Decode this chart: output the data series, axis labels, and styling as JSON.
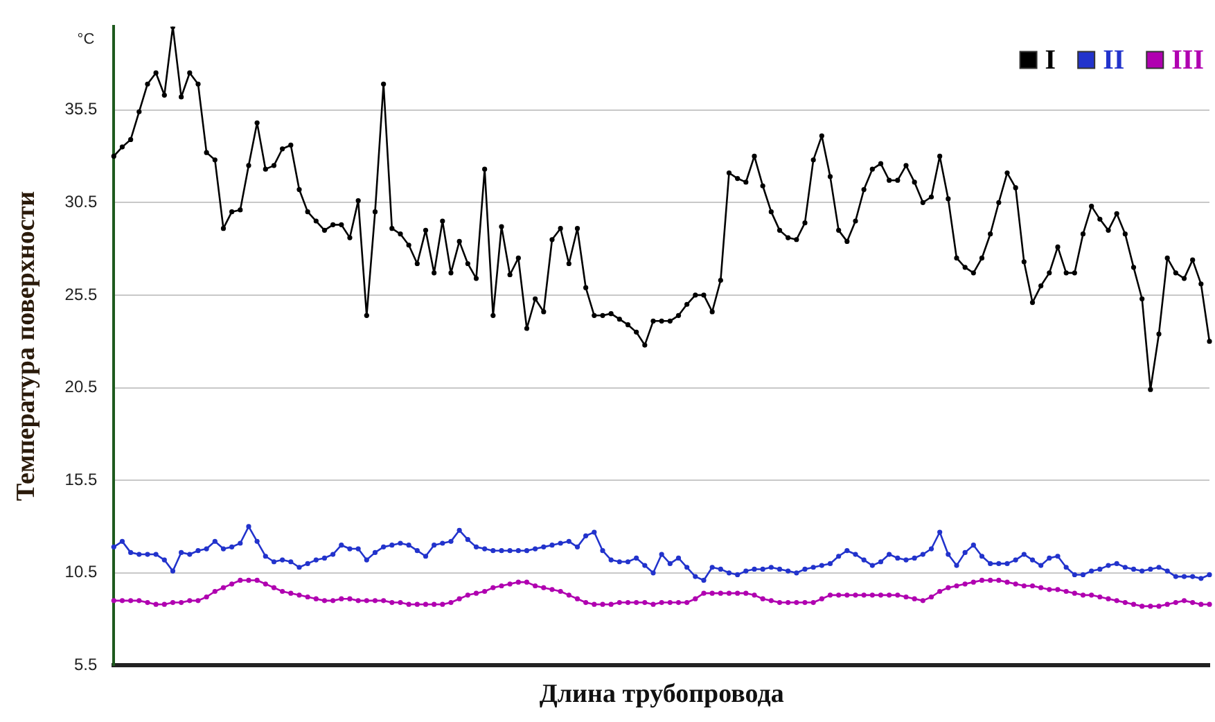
{
  "chart_data": {
    "type": "line",
    "xlabel": "Длина трубопровода",
    "ylabel": "Температура поверхности",
    "annotations": [
      "°C"
    ],
    "categories": [
      null,
      null,
      null,
      null,
      null,
      null,
      null,
      null,
      null,
      null,
      null,
      null,
      null,
      null,
      null,
      null,
      null,
      null,
      null,
      null,
      null,
      null,
      null,
      null,
      null,
      null,
      null,
      null,
      null,
      null,
      null,
      null,
      null,
      null,
      null,
      null,
      null,
      null,
      null,
      null,
      null,
      null,
      null,
      null,
      null,
      null,
      null,
      null,
      null,
      null,
      null,
      null,
      null,
      null,
      null,
      null,
      null,
      null,
      null,
      null,
      null,
      null,
      null,
      null,
      null,
      null,
      null,
      null,
      null,
      null,
      null,
      null,
      null,
      null,
      null,
      null,
      null,
      null,
      null,
      null,
      null,
      null,
      null,
      null,
      null,
      null,
      null,
      null,
      null,
      null,
      null,
      null,
      null,
      null,
      null,
      null,
      null,
      null,
      null,
      null,
      null,
      null,
      null,
      null,
      null,
      null,
      null,
      null,
      null,
      null,
      null,
      null,
      null,
      null,
      null,
      null,
      null,
      null,
      null,
      null,
      null,
      null,
      null,
      null,
      null,
      null,
      null,
      null,
      null,
      null,
      null
    ],
    "series": [
      {
        "name": "I",
        "color": "#000000",
        "values": [
          33.0,
          33.5,
          33.9,
          35.4,
          36.9,
          37.5,
          36.3,
          40.0,
          36.2,
          37.5,
          36.9,
          33.2,
          32.8,
          29.1,
          30.0,
          30.1,
          32.5,
          34.8,
          32.3,
          32.5,
          33.4,
          33.6,
          31.2,
          30.0,
          29.5,
          29.0,
          29.3,
          29.3,
          28.6,
          30.6,
          24.4,
          30.0,
          36.9,
          29.1,
          28.8,
          28.2,
          27.2,
          29.0,
          26.7,
          29.5,
          26.7,
          28.4,
          27.2,
          26.4,
          32.3,
          24.4,
          29.2,
          26.6,
          27.5,
          23.7,
          25.3,
          24.6,
          28.5,
          29.1,
          27.2,
          29.1,
          25.9,
          24.4,
          24.4,
          24.5,
          24.2,
          23.9,
          23.5,
          22.8,
          24.1,
          24.1,
          24.1,
          24.4,
          25.0,
          25.5,
          25.5,
          24.6,
          26.3,
          32.1,
          31.8,
          31.6,
          33.0,
          31.4,
          30.0,
          29.0,
          28.6,
          28.5,
          29.4,
          32.8,
          34.1,
          31.9,
          29.0,
          28.4,
          29.5,
          31.2,
          32.3,
          32.6,
          31.7,
          31.7,
          32.5,
          31.6,
          30.5,
          30.8,
          33.0,
          30.7,
          27.5,
          27.0,
          26.7,
          27.5,
          28.8,
          30.5,
          32.1,
          31.3,
          27.3,
          25.1,
          26.0,
          26.7,
          28.1,
          26.7,
          26.7,
          28.8,
          30.3,
          29.6,
          29.0,
          29.9,
          28.8,
          27.0,
          25.3,
          20.4,
          23.4,
          27.5,
          26.7,
          26.4,
          27.4,
          26.1,
          23.0
        ]
      },
      {
        "name": "II",
        "color": "#2233cc",
        "values": [
          11.9,
          12.2,
          11.6,
          11.5,
          11.5,
          11.5,
          11.2,
          10.6,
          11.6,
          11.5,
          11.7,
          11.8,
          12.2,
          11.8,
          11.9,
          12.1,
          13.0,
          12.2,
          11.4,
          11.1,
          11.2,
          11.1,
          10.8,
          11.0,
          11.2,
          11.3,
          11.5,
          12.0,
          11.8,
          11.8,
          11.2,
          11.6,
          11.9,
          12.0,
          12.1,
          12.0,
          11.7,
          11.4,
          12.0,
          12.1,
          12.2,
          12.8,
          12.3,
          11.9,
          11.8,
          11.7,
          11.7,
          11.7,
          11.7,
          11.7,
          11.8,
          11.9,
          12.0,
          12.1,
          12.2,
          11.9,
          12.5,
          12.7,
          11.7,
          11.2,
          11.1,
          11.1,
          11.3,
          10.9,
          10.5,
          11.5,
          11.0,
          11.3,
          10.8,
          10.3,
          10.1,
          10.8,
          10.7,
          10.5,
          10.4,
          10.6,
          10.7,
          10.7,
          10.8,
          10.7,
          10.6,
          10.5,
          10.7,
          10.8,
          10.9,
          11.0,
          11.4,
          11.7,
          11.5,
          11.2,
          10.9,
          11.1,
          11.5,
          11.3,
          11.2,
          11.3,
          11.5,
          11.8,
          12.7,
          11.5,
          10.9,
          11.6,
          12.0,
          11.4,
          11.0,
          11.0,
          11.0,
          11.2,
          11.5,
          11.2,
          10.9,
          11.3,
          11.4,
          10.8,
          10.4,
          10.4,
          10.6,
          10.7,
          10.9,
          11.0,
          10.8,
          10.7,
          10.6,
          10.7,
          10.8,
          10.6,
          10.3,
          10.3,
          10.3,
          10.2,
          10.4
        ]
      },
      {
        "name": "III",
        "color": "#b000b0",
        "values": [
          9.0,
          9.0,
          9.0,
          9.0,
          8.9,
          8.8,
          8.8,
          8.9,
          8.9,
          9.0,
          9.0,
          9.2,
          9.5,
          9.7,
          9.9,
          10.1,
          10.1,
          10.1,
          9.9,
          9.7,
          9.5,
          9.4,
          9.3,
          9.2,
          9.1,
          9.0,
          9.0,
          9.1,
          9.1,
          9.0,
          9.0,
          9.0,
          9.0,
          8.9,
          8.9,
          8.8,
          8.8,
          8.8,
          8.8,
          8.8,
          8.9,
          9.1,
          9.3,
          9.4,
          9.5,
          9.7,
          9.8,
          9.9,
          10.0,
          10.0,
          9.8,
          9.7,
          9.6,
          9.5,
          9.3,
          9.1,
          8.9,
          8.8,
          8.8,
          8.8,
          8.9,
          8.9,
          8.9,
          8.9,
          8.8,
          8.9,
          8.9,
          8.9,
          8.9,
          9.1,
          9.4,
          9.4,
          9.4,
          9.4,
          9.4,
          9.4,
          9.3,
          9.1,
          9.0,
          8.9,
          8.9,
          8.9,
          8.9,
          8.9,
          9.1,
          9.3,
          9.3,
          9.3,
          9.3,
          9.3,
          9.3,
          9.3,
          9.3,
          9.3,
          9.2,
          9.1,
          9.0,
          9.2,
          9.5,
          9.7,
          9.8,
          9.9,
          10.0,
          10.1,
          10.1,
          10.1,
          10.0,
          9.9,
          9.8,
          9.8,
          9.7,
          9.6,
          9.6,
          9.5,
          9.4,
          9.3,
          9.3,
          9.2,
          9.1,
          9.0,
          8.9,
          8.8,
          8.7,
          8.7,
          8.7,
          8.8,
          8.9,
          9.0,
          8.9,
          8.8,
          8.8
        ]
      }
    ],
    "ylim": [
      5.5,
      40
    ],
    "yticks": [
      5.5,
      10.5,
      15.5,
      20.5,
      25.5,
      30.5,
      35.5
    ],
    "grid": "y",
    "legend": "top right",
    "marker": "circle",
    "line_style": "solid"
  }
}
